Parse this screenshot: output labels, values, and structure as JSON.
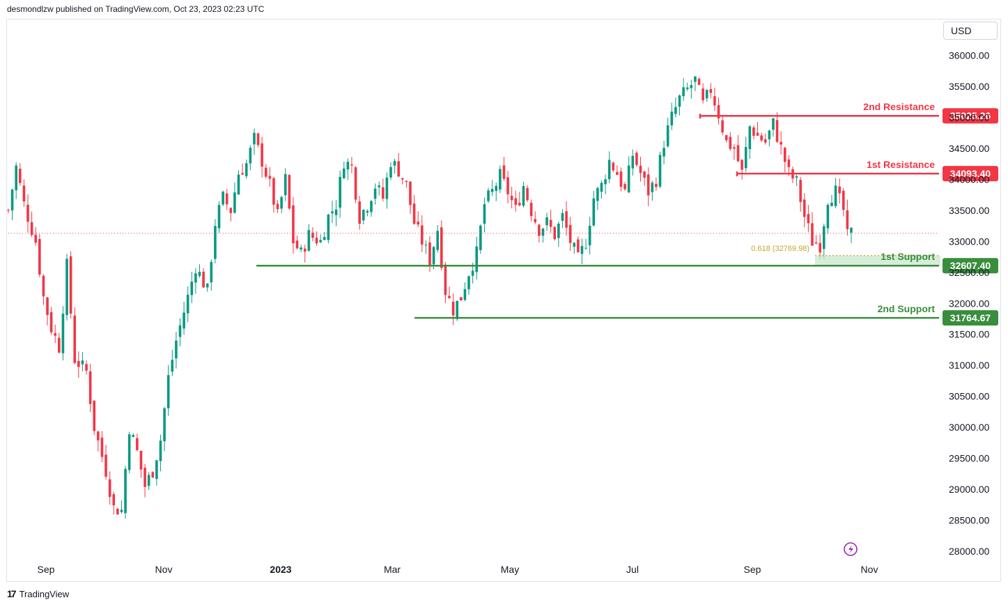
{
  "header": {
    "text": "desmondlzw published on TradingView.com, Oct 23, 2023 02:23 UTC"
  },
  "currency": "USD",
  "footer": {
    "logo": "17",
    "brand": "TradingView"
  },
  "colors": {
    "up": "#089981",
    "down": "#f23645",
    "resistance": "#f23645",
    "support": "#388e3c",
    "fib": "#c9a227"
  },
  "chart_data": {
    "type": "candlestick",
    "ylim": [
      27750,
      36250
    ],
    "yticks": [
      "28000.00",
      "28500.00",
      "29000.00",
      "29500.00",
      "30000.00",
      "30500.00",
      "31000.00",
      "31500.00",
      "32000.00",
      "32500.00",
      "33000.00",
      "33500.00",
      "34000.00",
      "34500.00",
      "35000.00",
      "35500.00",
      "36000.00"
    ],
    "x_labels": [
      "Sep",
      "Nov",
      "2023",
      "Mar",
      "May",
      "Jul",
      "Sep",
      "Nov"
    ],
    "levels": [
      {
        "name": "2nd Resistance",
        "value": 35025.26,
        "label": "35025.26",
        "kind": "resistance"
      },
      {
        "name": "1st Resistance",
        "value": 34093.4,
        "label": "34093.40",
        "kind": "resistance"
      },
      {
        "name": "1st Support",
        "value": 32607.4,
        "label": "32607.40",
        "kind": "support"
      },
      {
        "name": "2nd Support",
        "value": 31764.67,
        "label": "31764.67",
        "kind": "support"
      }
    ],
    "fib": {
      "label": "0.618 (32769.98)",
      "value": 32769.98
    },
    "last_price": 33130,
    "close_path": [
      [
        0,
        33500
      ],
      [
        2,
        34200
      ],
      [
        4,
        33600
      ],
      [
        7,
        33000
      ],
      [
        9,
        32100
      ],
      [
        11,
        31600
      ],
      [
        13,
        31300
      ],
      [
        15,
        32600
      ],
      [
        17,
        31100
      ],
      [
        20,
        30900
      ],
      [
        22,
        30000
      ],
      [
        25,
        29300
      ],
      [
        27,
        28700
      ],
      [
        29,
        28660
      ],
      [
        31,
        30000
      ],
      [
        33,
        29600
      ],
      [
        35,
        29050
      ],
      [
        37,
        29300
      ],
      [
        39,
        29800
      ],
      [
        41,
        30800
      ],
      [
        43,
        31400
      ],
      [
        46,
        32100
      ],
      [
        48,
        32600
      ],
      [
        51,
        32200
      ],
      [
        53,
        33300
      ],
      [
        55,
        33700
      ],
      [
        57,
        33500
      ],
      [
        59,
        34100
      ],
      [
        61,
        34250
      ],
      [
        63,
        34650
      ],
      [
        65,
        34300
      ],
      [
        67,
        33900
      ],
      [
        69,
        33400
      ],
      [
        71,
        34000
      ],
      [
        73,
        33000
      ],
      [
        75,
        32800
      ],
      [
        77,
        33100
      ],
      [
        80,
        33000
      ],
      [
        82,
        33400
      ],
      [
        84,
        33600
      ],
      [
        86,
        34300
      ],
      [
        88,
        34200
      ],
      [
        90,
        33400
      ],
      [
        92,
        33600
      ],
      [
        94,
        33900
      ],
      [
        96,
        33700
      ],
      [
        98,
        34300
      ],
      [
        100,
        34150
      ],
      [
        102,
        33900
      ],
      [
        104,
        33300
      ],
      [
        106,
        33000
      ],
      [
        108,
        32700
      ],
      [
        110,
        33200
      ],
      [
        112,
        32200
      ],
      [
        114,
        31900
      ],
      [
        116,
        32100
      ],
      [
        118,
        32500
      ],
      [
        120,
        32800
      ],
      [
        122,
        33600
      ],
      [
        124,
        33800
      ],
      [
        126,
        34050
      ],
      [
        128,
        33800
      ],
      [
        130,
        33500
      ],
      [
        132,
        33900
      ],
      [
        134,
        33500
      ],
      [
        136,
        33200
      ],
      [
        138,
        33300
      ],
      [
        140,
        33100
      ],
      [
        142,
        33400
      ],
      [
        144,
        33000
      ],
      [
        146,
        32700
      ],
      [
        148,
        33000
      ],
      [
        150,
        33700
      ],
      [
        152,
        33900
      ],
      [
        154,
        34300
      ],
      [
        156,
        34100
      ],
      [
        158,
        33800
      ],
      [
        160,
        34400
      ],
      [
        162,
        34100
      ],
      [
        164,
        33800
      ],
      [
        166,
        34000
      ],
      [
        168,
        34600
      ],
      [
        170,
        35000
      ],
      [
        172,
        35300
      ],
      [
        174,
        35450
      ],
      [
        176,
        35600
      ],
      [
        178,
        35200
      ],
      [
        180,
        35450
      ],
      [
        182,
        35050
      ],
      [
        184,
        34600
      ],
      [
        186,
        34500
      ],
      [
        188,
        34100
      ],
      [
        190,
        34850
      ],
      [
        192,
        34700
      ],
      [
        194,
        34600
      ],
      [
        196,
        34900
      ],
      [
        198,
        34500
      ],
      [
        200,
        34100
      ],
      [
        202,
        33950
      ],
      [
        204,
        33400
      ],
      [
        206,
        33000
      ],
      [
        208,
        32950
      ],
      [
        210,
        33700
      ],
      [
        212,
        33800
      ],
      [
        214,
        33500
      ],
      [
        215,
        33070
      ],
      [
        216,
        33130
      ]
    ]
  }
}
